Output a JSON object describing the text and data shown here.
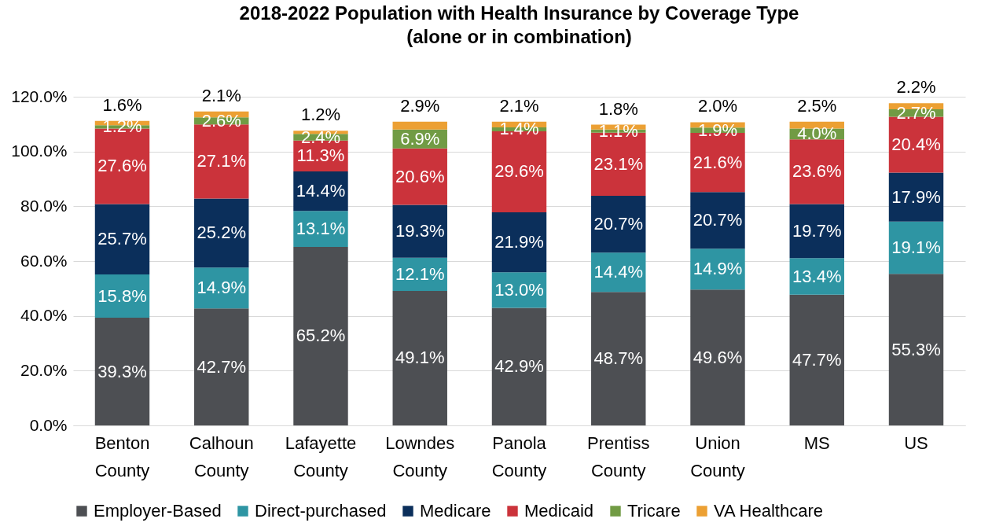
{
  "chart_data": {
    "type": "bar",
    "stacked": true,
    "title": "2018-2022 Population with Health Insurance by Coverage Type",
    "subtitle": "(alone or in combination)",
    "categories": [
      "Benton County",
      "Calhoun County",
      "Lafayette County",
      "Lowndes County",
      "Panola County",
      "Prentiss County",
      "Union County",
      "MS",
      "US"
    ],
    "series": [
      {
        "name": "Employer-Based",
        "color": "#4d4f53",
        "values": [
          39.3,
          42.7,
          65.2,
          49.1,
          42.9,
          48.7,
          49.6,
          47.7,
          55.3
        ],
        "value_labels": [
          "39.3%",
          "42.7%",
          "65.2%",
          "49.1%",
          "42.9%",
          "48.7%",
          "49.6%",
          "47.7%",
          "55.3%"
        ]
      },
      {
        "name": "Direct-purchased",
        "color": "#2e95a3",
        "values": [
          15.8,
          14.9,
          13.1,
          12.1,
          13.0,
          14.4,
          14.9,
          13.4,
          19.1
        ],
        "value_labels": [
          "15.8%",
          "14.9%",
          "13.1%",
          "12.1%",
          "13.0%",
          "14.4%",
          "14.9%",
          "13.4%",
          "19.1%"
        ]
      },
      {
        "name": "Medicare",
        "color": "#0b2f5b",
        "values": [
          25.7,
          25.2,
          14.4,
          19.3,
          21.9,
          20.7,
          20.7,
          19.7,
          17.9
        ],
        "value_labels": [
          "25.7%",
          "25.2%",
          "14.4%",
          "19.3%",
          "21.9%",
          "20.7%",
          "20.7%",
          "19.7%",
          "17.9%"
        ]
      },
      {
        "name": "Medicaid",
        "color": "#cb333b",
        "values": [
          27.6,
          27.1,
          11.3,
          20.6,
          29.6,
          23.1,
          21.6,
          23.6,
          20.4
        ],
        "value_labels": [
          "27.6%",
          "27.1%",
          "11.3%",
          "20.6%",
          "29.6%",
          "23.1%",
          "21.6%",
          "23.6%",
          "20.4%"
        ]
      },
      {
        "name": "Tricare",
        "color": "#719b44",
        "values": [
          1.2,
          2.6,
          2.4,
          6.9,
          1.4,
          1.1,
          1.9,
          4.0,
          2.7
        ],
        "value_labels": [
          "1.2%",
          "2.6%",
          "2.4%",
          "6.9%",
          "1.4%",
          "1.1%",
          "1.9%",
          "4.0%",
          "2.7%"
        ]
      },
      {
        "name": "VA Healthcare",
        "color": "#eca033",
        "values": [
          1.6,
          2.1,
          1.2,
          2.9,
          2.1,
          1.8,
          2.0,
          2.5,
          2.2
        ],
        "value_labels": [
          "1.6%",
          "2.1%",
          "1.2%",
          "2.9%",
          "2.1%",
          "1.8%",
          "2.0%",
          "2.5%",
          "2.2%"
        ]
      }
    ],
    "ylim": [
      0,
      120
    ],
    "yticks": [
      {
        "value": 0,
        "label": "0.0%"
      },
      {
        "value": 20,
        "label": "20.0%"
      },
      {
        "value": 40,
        "label": "40.0%"
      },
      {
        "value": 60,
        "label": "60.0%"
      },
      {
        "value": 80,
        "label": "80.0%"
      },
      {
        "value": 100,
        "label": "100.0%"
      },
      {
        "value": 120,
        "label": "120.0%"
      }
    ],
    "grid": "y",
    "legend": "bottom"
  }
}
